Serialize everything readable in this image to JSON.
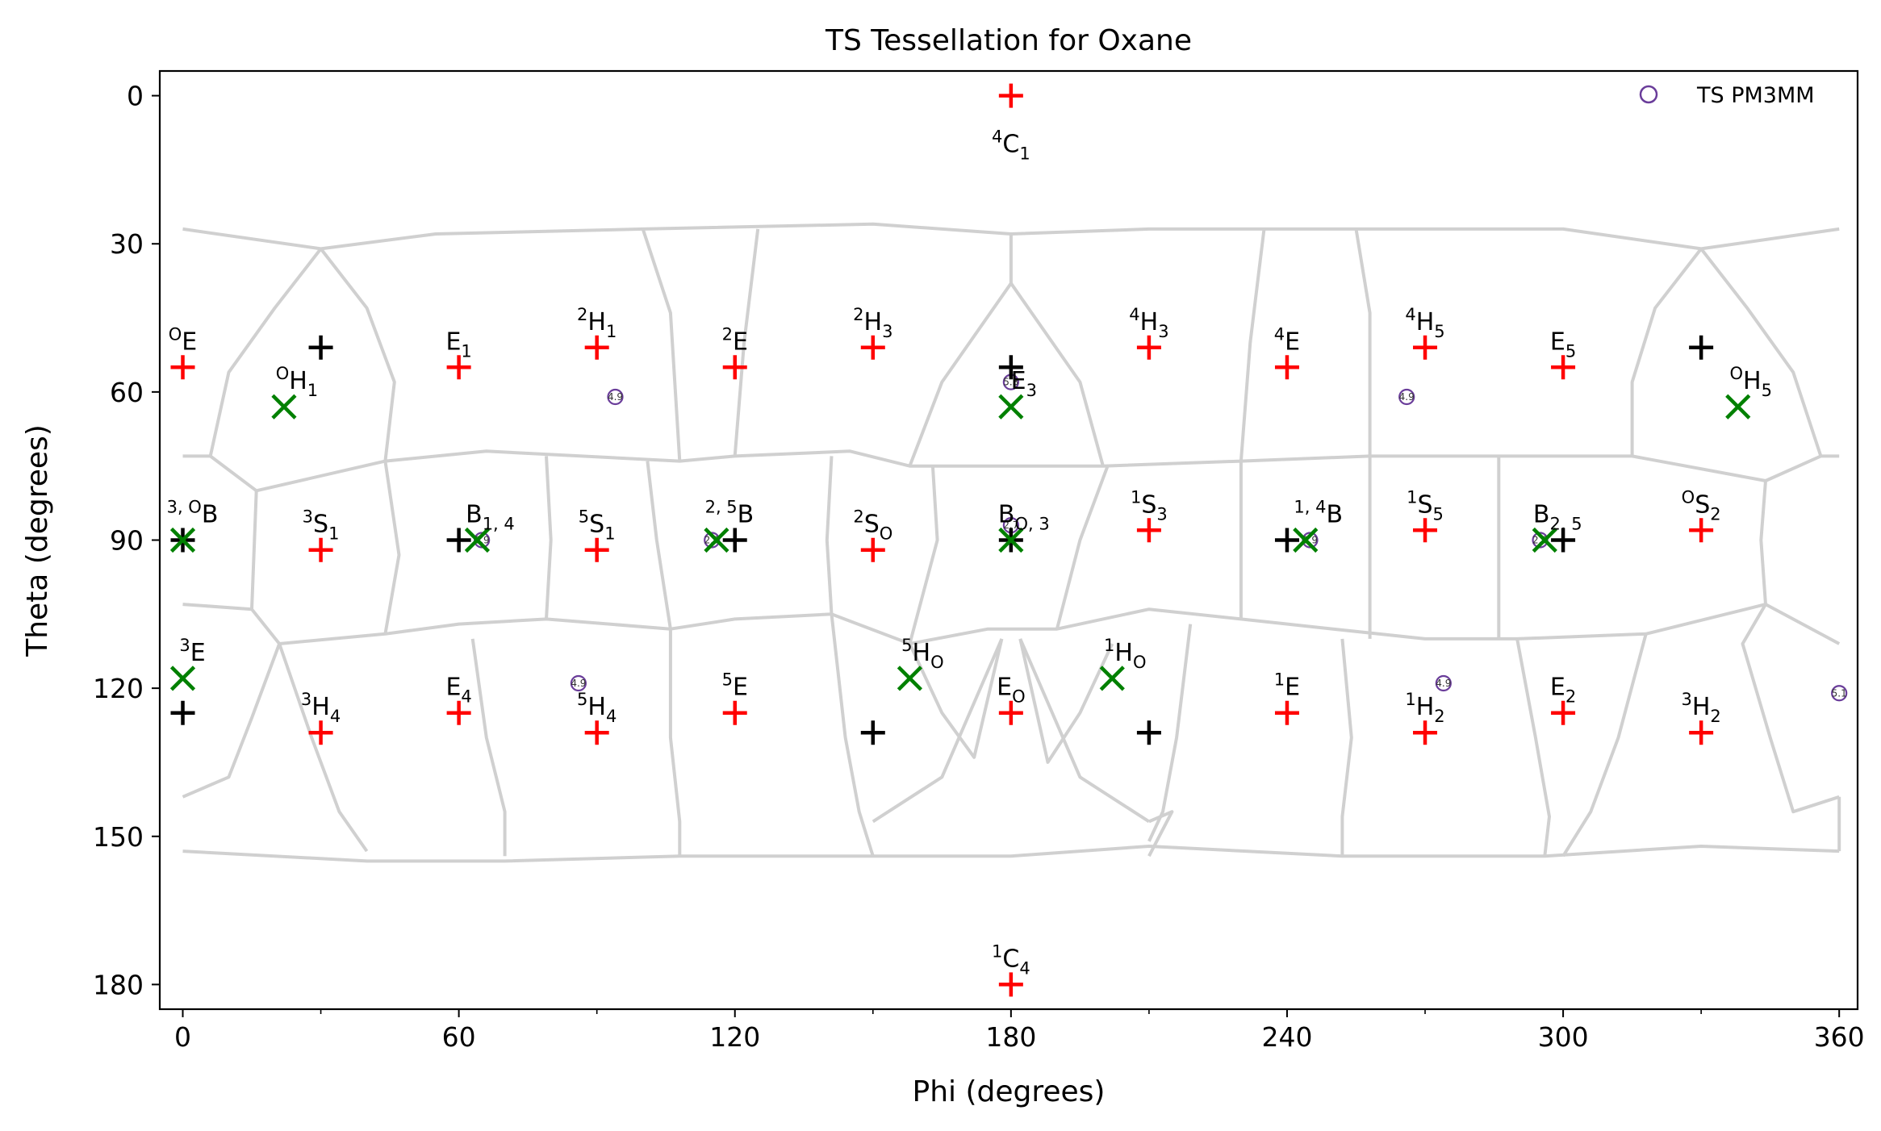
{
  "chart_data": {
    "type": "scatter",
    "title": "TS Tessellation for Oxane",
    "xlabel": "Phi (degrees)",
    "ylabel": "Theta (degrees)",
    "xlim": [
      -5,
      364
    ],
    "ylim": [
      185,
      -5
    ],
    "y_inverted": true,
    "xticks": [
      0,
      60,
      120,
      180,
      240,
      300,
      360
    ],
    "yticks": [
      0,
      30,
      60,
      90,
      120,
      150,
      180
    ],
    "grid": false,
    "legend": {
      "placement": "top-right",
      "entries": [
        {
          "name": "TS PM3MM",
          "marker": "open-circle",
          "color": "#6a3d9a"
        }
      ]
    },
    "colors": {
      "canonical": "#ff0000",
      "center": "#000000",
      "local_min": "#008000",
      "ts": "#6a3d9a",
      "tessellation": "#d0d0d0"
    },
    "canonical_points": [
      {
        "phi": 180,
        "theta": 0,
        "label": {
          "pre": "4",
          "base": "C",
          "sub": "1"
        },
        "label_pos": "below"
      },
      {
        "phi": 180,
        "theta": 180,
        "label": {
          "pre": "1",
          "base": "C",
          "sub": "4"
        },
        "label_pos": "above"
      },
      {
        "phi": 0,
        "theta": 55,
        "label": {
          "pre": "O",
          "base": "E",
          "sub": ""
        }
      },
      {
        "phi": 60,
        "theta": 55,
        "label": {
          "pre": "",
          "base": "E",
          "sub": "1"
        }
      },
      {
        "phi": 90,
        "theta": 51,
        "label": {
          "pre": "2",
          "base": "H",
          "sub": "1"
        }
      },
      {
        "phi": 120,
        "theta": 55,
        "label": {
          "pre": "2",
          "base": "E",
          "sub": ""
        }
      },
      {
        "phi": 150,
        "theta": 51,
        "label": {
          "pre": "2",
          "base": "H",
          "sub": "3"
        }
      },
      {
        "phi": 210,
        "theta": 51,
        "label": {
          "pre": "4",
          "base": "H",
          "sub": "3"
        }
      },
      {
        "phi": 240,
        "theta": 55,
        "label": {
          "pre": "4",
          "base": "E",
          "sub": ""
        }
      },
      {
        "phi": 270,
        "theta": 51,
        "label": {
          "pre": "4",
          "base": "H",
          "sub": "5"
        }
      },
      {
        "phi": 300,
        "theta": 55,
        "label": {
          "pre": "",
          "base": "E",
          "sub": "5"
        }
      },
      {
        "phi": 30,
        "theta": 92,
        "label": {
          "pre": "3",
          "base": "S",
          "sub": "1"
        }
      },
      {
        "phi": 90,
        "theta": 92,
        "label": {
          "pre": "5",
          "base": "S",
          "sub": "1"
        }
      },
      {
        "phi": 150,
        "theta": 92,
        "label": {
          "pre": "2",
          "base": "S",
          "sub": "O"
        }
      },
      {
        "phi": 210,
        "theta": 88,
        "label": {
          "pre": "1",
          "base": "S",
          "sub": "3"
        }
      },
      {
        "phi": 270,
        "theta": 88,
        "label": {
          "pre": "1",
          "base": "S",
          "sub": "5"
        }
      },
      {
        "phi": 330,
        "theta": 88,
        "label": {
          "pre": "O",
          "base": "S",
          "sub": "2"
        }
      },
      {
        "phi": 30,
        "theta": 129,
        "label": {
          "pre": "3",
          "base": "H",
          "sub": "4"
        }
      },
      {
        "phi": 60,
        "theta": 125,
        "label": {
          "pre": "",
          "base": "E",
          "sub": "4"
        }
      },
      {
        "phi": 90,
        "theta": 129,
        "label": {
          "pre": "5",
          "base": "H",
          "sub": "4"
        }
      },
      {
        "phi": 120,
        "theta": 125,
        "label": {
          "pre": "5",
          "base": "E",
          "sub": ""
        }
      },
      {
        "phi": 180,
        "theta": 125,
        "label": {
          "pre": "",
          "base": "E",
          "sub": "O"
        }
      },
      {
        "phi": 240,
        "theta": 125,
        "label": {
          "pre": "1",
          "base": "E",
          "sub": ""
        }
      },
      {
        "phi": 270,
        "theta": 129,
        "label": {
          "pre": "1",
          "base": "H",
          "sub": "2"
        }
      },
      {
        "phi": 300,
        "theta": 125,
        "label": {
          "pre": "",
          "base": "E",
          "sub": "2"
        }
      },
      {
        "phi": 330,
        "theta": 129,
        "label": {
          "pre": "3",
          "base": "H",
          "sub": "2"
        }
      }
    ],
    "center_points": [
      {
        "phi": 30,
        "theta": 51
      },
      {
        "phi": 330,
        "theta": 51
      },
      {
        "phi": 180,
        "theta": 55
      },
      {
        "phi": 0,
        "theta": 90
      },
      {
        "phi": 60,
        "theta": 90
      },
      {
        "phi": 120,
        "theta": 90
      },
      {
        "phi": 180,
        "theta": 90
      },
      {
        "phi": 240,
        "theta": 90
      },
      {
        "phi": 300,
        "theta": 90
      },
      {
        "phi": 0,
        "theta": 125
      },
      {
        "phi": 150,
        "theta": 129
      },
      {
        "phi": 210,
        "theta": 129
      }
    ],
    "local_min_points": [
      {
        "phi": 22,
        "theta": 63,
        "label": {
          "pre": "O",
          "base": "H",
          "sub": "1"
        }
      },
      {
        "phi": 180,
        "theta": 63,
        "label": {
          "pre": "",
          "base": "E",
          "sub": "3"
        }
      },
      {
        "phi": 338,
        "theta": 63,
        "label": {
          "pre": "O",
          "base": "H",
          "sub": "5"
        }
      },
      {
        "phi": 0,
        "theta": 90,
        "label": {
          "pre": "3, O",
          "base": "B",
          "sub": ""
        }
      },
      {
        "phi": 64,
        "theta": 90,
        "label": {
          "pre": "",
          "base": "B",
          "sub": "1, 4"
        }
      },
      {
        "phi": 116,
        "theta": 90,
        "label": {
          "pre": "2, 5",
          "base": "B",
          "sub": ""
        }
      },
      {
        "phi": 180,
        "theta": 90,
        "label": {
          "pre": "",
          "base": "B",
          "sub": "O, 3"
        }
      },
      {
        "phi": 244,
        "theta": 90,
        "label": {
          "pre": "1, 4",
          "base": "B",
          "sub": ""
        }
      },
      {
        "phi": 296,
        "theta": 90,
        "label": {
          "pre": "",
          "base": "B",
          "sub": "2, 5"
        }
      },
      {
        "phi": 0,
        "theta": 118,
        "label": {
          "pre": "3",
          "base": "E",
          "sub": ""
        }
      },
      {
        "phi": 158,
        "theta": 118,
        "label": {
          "pre": "5",
          "base": "H",
          "sub": "O"
        }
      },
      {
        "phi": 202,
        "theta": 118,
        "label": {
          "pre": "1",
          "base": "H",
          "sub": "O"
        }
      }
    ],
    "ts_points": [
      {
        "phi": 94,
        "theta": 61,
        "label": "4.9"
      },
      {
        "phi": 266,
        "theta": 61,
        "label": "4.9"
      },
      {
        "phi": 180,
        "theta": 58,
        "label": "5.3"
      },
      {
        "phi": 65,
        "theta": 90,
        "label": "2.9"
      },
      {
        "phi": 115,
        "theta": 90,
        "label": "2.9"
      },
      {
        "phi": 180,
        "theta": 87,
        "label": "2.7"
      },
      {
        "phi": 245,
        "theta": 90,
        "label": "2.9"
      },
      {
        "phi": 295,
        "theta": 90,
        "label": "2.9"
      },
      {
        "phi": 86,
        "theta": 119,
        "label": "4.9"
      },
      {
        "phi": 274,
        "theta": 119,
        "label": "4.9"
      },
      {
        "phi": 360,
        "theta": 121,
        "label": "5.1"
      }
    ],
    "tessellation_edges": [
      [
        [
          0,
          27
        ],
        [
          30,
          31
        ],
        [
          55,
          28
        ],
        [
          100,
          27
        ],
        [
          150,
          26
        ],
        [
          180,
          28
        ],
        [
          210,
          27
        ],
        [
          255,
          27
        ],
        [
          300,
          27
        ],
        [
          330,
          31
        ],
        [
          360,
          27
        ]
      ],
      [
        [
          30,
          31
        ],
        [
          20,
          43
        ],
        [
          10,
          56
        ],
        [
          6,
          73
        ]
      ],
      [
        [
          30,
          31
        ],
        [
          40,
          43
        ],
        [
          46,
          58
        ],
        [
          44,
          74
        ]
      ],
      [
        [
          100,
          27
        ],
        [
          106,
          44
        ],
        [
          108,
          74
        ]
      ],
      [
        [
          125,
          27
        ],
        [
          122,
          50
        ],
        [
          120,
          73
        ]
      ],
      [
        [
          180,
          38
        ],
        [
          180,
          28
        ]
      ],
      [
        [
          180,
          38
        ],
        [
          165,
          58
        ],
        [
          158,
          75
        ]
      ],
      [
        [
          180,
          38
        ],
        [
          195,
          58
        ],
        [
          200,
          75
        ]
      ],
      [
        [
          235,
          27
        ],
        [
          232,
          50
        ],
        [
          230,
          74
        ]
      ],
      [
        [
          255,
          27
        ],
        [
          258,
          44
        ],
        [
          258,
          73
        ]
      ],
      [
        [
          330,
          31
        ],
        [
          340,
          43
        ],
        [
          350,
          56
        ],
        [
          356,
          73
        ]
      ],
      [
        [
          330,
          31
        ],
        [
          320,
          43
        ],
        [
          315,
          58
        ],
        [
          315,
          73
        ]
      ],
      [
        [
          0,
          73
        ],
        [
          6,
          73
        ],
        [
          16,
          80
        ],
        [
          44,
          74
        ],
        [
          66,
          72
        ],
        [
          108,
          74
        ],
        [
          120,
          73
        ],
        [
          145,
          72
        ],
        [
          158,
          75
        ],
        [
          200,
          75
        ],
        [
          230,
          74
        ],
        [
          258,
          73
        ],
        [
          290,
          73
        ],
        [
          315,
          73
        ],
        [
          344,
          78
        ],
        [
          356,
          73
        ],
        [
          360,
          73
        ]
      ],
      [
        [
          16,
          80
        ],
        [
          15,
          104
        ],
        [
          0,
          103
        ]
      ],
      [
        [
          15,
          104
        ],
        [
          21,
          111
        ],
        [
          44,
          109
        ],
        [
          60,
          107
        ],
        [
          79,
          106
        ],
        [
          106,
          108
        ],
        [
          120,
          106
        ],
        [
          141,
          105
        ],
        [
          158,
          111
        ],
        [
          175,
          108
        ],
        [
          190,
          108
        ],
        [
          210,
          104
        ],
        [
          230,
          106
        ],
        [
          250,
          108
        ],
        [
          270,
          110
        ],
        [
          290,
          110
        ],
        [
          318,
          109
        ],
        [
          344,
          103
        ],
        [
          360,
          111
        ]
      ],
      [
        [
          44,
          74
        ],
        [
          47,
          93
        ],
        [
          44,
          109
        ]
      ],
      [
        [
          79,
          73
        ],
        [
          80,
          90
        ],
        [
          79,
          106
        ]
      ],
      [
        [
          101,
          74
        ],
        [
          103,
          90
        ],
        [
          106,
          108
        ]
      ],
      [
        [
          141,
          73
        ],
        [
          140,
          90
        ],
        [
          141,
          105
        ]
      ],
      [
        [
          163,
          75
        ],
        [
          164,
          90
        ],
        [
          158,
          111
        ]
      ],
      [
        [
          201,
          75
        ],
        [
          195,
          90
        ],
        [
          190,
          108
        ]
      ],
      [
        [
          230,
          74
        ],
        [
          230,
          90
        ],
        [
          230,
          106
        ]
      ],
      [
        [
          258,
          73
        ],
        [
          258,
          90
        ],
        [
          258,
          110
        ]
      ],
      [
        [
          286,
          73
        ],
        [
          286,
          90
        ],
        [
          286,
          110
        ]
      ],
      [
        [
          344,
          78
        ],
        [
          343,
          90
        ],
        [
          344,
          103
        ]
      ],
      [
        [
          21,
          111
        ],
        [
          15,
          126
        ],
        [
          10,
          138
        ],
        [
          0,
          142
        ]
      ],
      [
        [
          21,
          111
        ],
        [
          28,
          130
        ],
        [
          34,
          145
        ],
        [
          40,
          153
        ]
      ],
      [
        [
          63,
          110
        ],
        [
          66,
          130
        ],
        [
          70,
          145
        ],
        [
          70,
          154
        ]
      ],
      [
        [
          106,
          108
        ],
        [
          106,
          130
        ],
        [
          108,
          147
        ],
        [
          108,
          154
        ]
      ],
      [
        [
          141,
          105
        ],
        [
          144,
          130
        ],
        [
          147,
          145
        ],
        [
          150,
          154
        ]
      ],
      [
        [
          158,
          111
        ],
        [
          165,
          125
        ],
        [
          172,
          134
        ],
        [
          178,
          110
        ]
      ],
      [
        [
          182,
          110
        ],
        [
          188,
          135
        ],
        [
          195,
          125
        ],
        [
          202,
          111
        ]
      ],
      [
        [
          150,
          147
        ],
        [
          165,
          138
        ],
        [
          178,
          110
        ]
      ],
      [
        [
          210,
          147
        ],
        [
          195,
          138
        ],
        [
          182,
          110
        ]
      ],
      [
        [
          210,
          147
        ],
        [
          215,
          145
        ],
        [
          210,
          154
        ]
      ],
      [
        [
          219,
          107
        ],
        [
          216,
          130
        ],
        [
          213,
          145
        ],
        [
          210,
          151
        ]
      ],
      [
        [
          252,
          110
        ],
        [
          254,
          130
        ],
        [
          252,
          146
        ],
        [
          252,
          154
        ]
      ],
      [
        [
          290,
          110
        ],
        [
          294,
          130
        ],
        [
          297,
          146
        ],
        [
          296,
          154
        ]
      ],
      [
        [
          318,
          109
        ],
        [
          312,
          130
        ],
        [
          306,
          145
        ],
        [
          300,
          154
        ]
      ],
      [
        [
          344,
          103
        ],
        [
          339,
          111
        ],
        [
          345,
          130
        ],
        [
          350,
          145
        ],
        [
          360,
          142
        ]
      ],
      [
        [
          0,
          153
        ],
        [
          40,
          155
        ],
        [
          70,
          155
        ],
        [
          108,
          154
        ],
        [
          150,
          154
        ],
        [
          180,
          154
        ],
        [
          210,
          152
        ],
        [
          252,
          154
        ],
        [
          296,
          154
        ],
        [
          330,
          152
        ],
        [
          360,
          153
        ]
      ],
      [
        [
          360,
          142
        ],
        [
          360,
          153
        ]
      ]
    ]
  }
}
